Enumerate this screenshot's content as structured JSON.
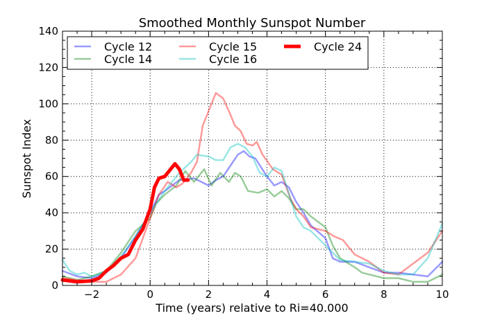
{
  "chart_data": {
    "type": "line",
    "title": "Smoothed Monthly Sunspot Number",
    "xlabel": "Time (years) relative to Ri=40.000",
    "ylabel": "Sunspot Index",
    "xlim": [
      -3,
      10
    ],
    "ylim": [
      0,
      140
    ],
    "xticks": [
      -2,
      0,
      2,
      4,
      6,
      8,
      10
    ],
    "xtick_labels": [
      "−2",
      "0",
      "2",
      "4",
      "6",
      "8",
      "10"
    ],
    "yticks": [
      0,
      20,
      40,
      60,
      80,
      100,
      120,
      140
    ],
    "ytick_labels": [
      "0",
      "20",
      "40",
      "60",
      "80",
      "100",
      "120",
      "140"
    ],
    "grid": true,
    "legend_placement": "top-left",
    "series": [
      {
        "name": "Cycle 12",
        "color": "#0000ff",
        "alpha": 0.4,
        "width": 2.5,
        "x": [
          -3,
          -2.5,
          -2,
          -1.5,
          -1,
          -0.5,
          0,
          0.3,
          0.5,
          1,
          1.5,
          2,
          2.25,
          2.5,
          2.75,
          3,
          3.2,
          3.4,
          3.6,
          4,
          4.25,
          4.5,
          4.75,
          5,
          5.25,
          5.5,
          6,
          6.25,
          6.5,
          7,
          7.5,
          8,
          8.5,
          9,
          9.5,
          10
        ],
        "y": [
          8,
          5,
          4,
          7,
          15,
          27,
          40,
          50,
          52,
          58,
          59,
          55,
          58,
          60,
          66,
          72,
          74,
          71,
          70,
          60,
          55,
          57,
          54,
          46,
          40,
          33,
          26,
          15,
          13,
          13,
          10,
          7,
          7,
          6,
          5,
          13
        ]
      },
      {
        "name": "Cycle 14",
        "color": "#008000",
        "alpha": 0.4,
        "width": 2.5,
        "x": [
          -3,
          -2.5,
          -2,
          -1.5,
          -1,
          -0.5,
          0,
          0.2,
          0.5,
          0.9,
          1.2,
          1.5,
          1.85,
          2.1,
          2.4,
          2.7,
          2.9,
          3.1,
          3.35,
          3.7,
          4,
          4.25,
          4.5,
          4.75,
          5,
          5.25,
          5.5,
          6,
          6.25,
          6.5,
          7,
          7.25,
          8,
          8.5,
          9,
          9.5,
          10
        ],
        "y": [
          5,
          3,
          5,
          8,
          18,
          30,
          37,
          45,
          50,
          55,
          63,
          57,
          64,
          55,
          62,
          57,
          62,
          60,
          52,
          51,
          53,
          49,
          52,
          48,
          42,
          42,
          38,
          32,
          22,
          15,
          10,
          7,
          4,
          4,
          2,
          2,
          6
        ]
      },
      {
        "name": "Cycle 15",
        "color": "#ff0000",
        "alpha": 0.4,
        "width": 2.5,
        "x": [
          -3,
          -2,
          -1.5,
          -1,
          -0.5,
          0,
          0.3,
          0.6,
          0.9,
          1.1,
          1.4,
          1.6,
          1.8,
          2,
          2.25,
          2.5,
          2.75,
          2.9,
          3.1,
          3.3,
          3.5,
          3.65,
          3.85,
          4.2,
          4.5,
          4.8,
          5,
          5.25,
          5.5,
          6,
          6.3,
          6.6,
          7,
          7.5,
          8,
          8.5,
          9,
          9.5,
          10
        ],
        "y": [
          4,
          2,
          2,
          6,
          15,
          37,
          50,
          57,
          54,
          56,
          62,
          68,
          88,
          96,
          106,
          103,
          94,
          88,
          85,
          78,
          77,
          79,
          72,
          64,
          61,
          48,
          42,
          38,
          32,
          30,
          27,
          25,
          17,
          13,
          7,
          6,
          12,
          18,
          30
        ]
      },
      {
        "name": "Cycle 16",
        "color": "#00bfbf",
        "alpha": 0.4,
        "width": 2.5,
        "x": [
          -3,
          -2.75,
          -2.5,
          -2.25,
          -2,
          -1.5,
          -1,
          -0.5,
          0,
          0.5,
          1,
          1.4,
          1.6,
          2,
          2.25,
          2.5,
          2.75,
          3,
          3.25,
          3.5,
          3.75,
          4,
          4.25,
          4.5,
          5,
          5.25,
          5.5,
          6,
          6.25,
          6.5,
          7,
          7.5,
          8,
          8.5,
          9,
          9.5,
          10
        ],
        "y": [
          14,
          8,
          6,
          7,
          5,
          8,
          16,
          27,
          40,
          52,
          62,
          68,
          72,
          71,
          69,
          69,
          76,
          78,
          76,
          71,
          62,
          60,
          65,
          63,
          38,
          32,
          30,
          22,
          18,
          14,
          13,
          12,
          8,
          6,
          6,
          15,
          34
        ]
      },
      {
        "name": "Cycle 24",
        "color": "#ff0000",
        "alpha": 1,
        "width": 5,
        "x": [
          -3,
          -2.5,
          -2,
          -1.75,
          -1.5,
          -1.25,
          -1,
          -0.75,
          -0.5,
          -0.25,
          0,
          0.15,
          0.3,
          0.5,
          0.7,
          0.85,
          1,
          1.15,
          1.3
        ],
        "y": [
          3,
          2,
          2.5,
          4,
          8,
          11,
          15,
          17,
          25,
          31,
          42,
          54,
          59,
          60,
          64,
          67,
          64,
          58,
          58
        ]
      }
    ]
  }
}
